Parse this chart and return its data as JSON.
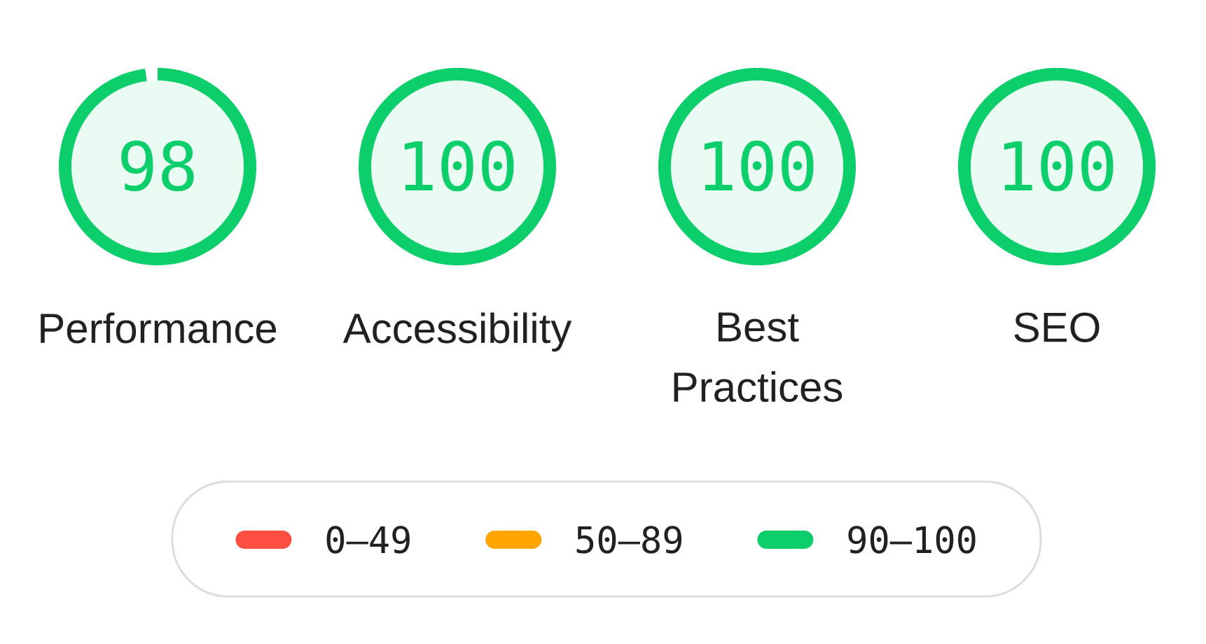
{
  "chart_data": {
    "type": "other",
    "categories": [
      "Performance",
      "Accessibility",
      "Best Practices",
      "SEO"
    ],
    "series": [
      {
        "name": "0–49",
        "color": "#ff4e42",
        "values": [
          null,
          null,
          null,
          null
        ]
      },
      {
        "name": "50–89",
        "color": "#ffa400",
        "values": [
          null,
          null,
          null,
          null
        ]
      },
      {
        "name": "90–100",
        "color": "#0cce6b",
        "values": [
          98,
          100,
          100,
          100
        ]
      }
    ],
    "data_labels": true,
    "legend": "bottom"
  }
}
